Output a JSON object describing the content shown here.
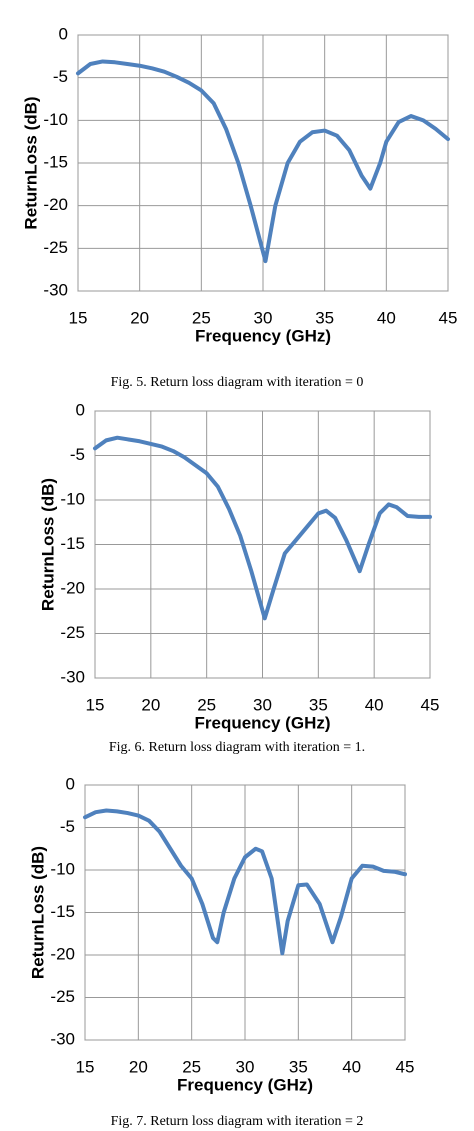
{
  "chart_data": [
    {
      "type": "line",
      "x_label": "Frequency (GHz)",
      "y_label": "ReturnLoss (dB)",
      "caption": "Fig. 5. Return loss diagram with iteration = 0",
      "xlim": [
        15,
        45
      ],
      "ylim": [
        -30,
        0
      ],
      "xticks": [
        15,
        20,
        25,
        30,
        35,
        40,
        45
      ],
      "yticks": [
        0,
        -5,
        -10,
        -15,
        -20,
        -25,
        -30
      ],
      "grid": true,
      "color": "#4f81bd",
      "x": [
        15,
        16,
        17,
        18,
        19,
        20,
        21,
        22,
        23,
        24,
        25,
        26,
        27,
        28,
        29,
        30.2,
        31,
        32,
        33,
        34,
        35,
        36,
        37,
        38,
        38.7,
        39.5,
        40,
        41,
        42,
        43,
        44,
        45
      ],
      "values": [
        -4.5,
        -3.4,
        -3.1,
        -3.2,
        -3.4,
        -3.6,
        -3.9,
        -4.3,
        -4.9,
        -5.6,
        -6.5,
        -8.0,
        -11,
        -15,
        -20,
        -26.5,
        -20,
        -15,
        -12.5,
        -11.4,
        -11.2,
        -11.8,
        -13.5,
        -16.5,
        -18,
        -15,
        -12.5,
        -10.2,
        -9.5,
        -10,
        -11,
        -12.2
      ]
    },
    {
      "type": "line",
      "x_label": "Frequency (GHz)",
      "y_label": "ReturnLoss (dB)",
      "caption": "Fig. 6. Return loss diagram with iteration = 1.",
      "xlim": [
        15,
        45
      ],
      "ylim": [
        -30,
        0
      ],
      "xticks": [
        15,
        20,
        25,
        30,
        35,
        40,
        45
      ],
      "yticks": [
        0,
        -5,
        -10,
        -15,
        -20,
        -25,
        -30
      ],
      "grid": true,
      "color": "#4f81bd",
      "x": [
        15,
        16,
        17,
        18,
        19,
        20,
        21,
        22,
        23,
        24,
        25,
        26,
        27,
        28,
        29,
        30.2,
        31,
        32,
        33,
        34,
        35,
        35.7,
        36.5,
        37.5,
        38.7,
        39.5,
        40.5,
        41.3,
        42,
        43,
        44,
        45
      ],
      "values": [
        -4.2,
        -3.3,
        -3.0,
        -3.2,
        -3.4,
        -3.7,
        -4.0,
        -4.5,
        -5.2,
        -6.1,
        -7.0,
        -8.5,
        -11,
        -14,
        -18,
        -23.3,
        -20,
        -16,
        -14.5,
        -13,
        -11.5,
        -11.2,
        -12,
        -14.5,
        -18,
        -15,
        -11.5,
        -10.5,
        -10.8,
        -11.8,
        -11.9,
        -11.9
      ]
    },
    {
      "type": "line",
      "x_label": "Frequency (GHz)",
      "y_label": "ReturnLoss (dB)",
      "caption": "Fig. 7. Return loss diagram with iteration = 2",
      "xlim": [
        15,
        45
      ],
      "ylim": [
        -30,
        0
      ],
      "xticks": [
        15,
        20,
        25,
        30,
        35,
        40,
        45
      ],
      "yticks": [
        0,
        -5,
        -10,
        -15,
        -20,
        -25,
        -30
      ],
      "grid": true,
      "color": "#4f81bd",
      "x": [
        15,
        16,
        17,
        18,
        19,
        20,
        21,
        22,
        23,
        24,
        25,
        26,
        27,
        27.4,
        28,
        29,
        30,
        31,
        31.6,
        32.5,
        33.5,
        34,
        35,
        35.8,
        37,
        38.2,
        39,
        40,
        41,
        42,
        43,
        44,
        45
      ],
      "values": [
        -3.8,
        -3.2,
        -3.0,
        -3.1,
        -3.3,
        -3.6,
        -4.2,
        -5.5,
        -7.5,
        -9.5,
        -11,
        -14,
        -18,
        -18.5,
        -15,
        -11,
        -8.5,
        -7.5,
        -7.8,
        -11,
        -19.8,
        -16,
        -11.8,
        -11.7,
        -14,
        -18.5,
        -15.5,
        -11,
        -9.5,
        -9.6,
        -10.1,
        -10.2,
        -10.5
      ]
    }
  ]
}
